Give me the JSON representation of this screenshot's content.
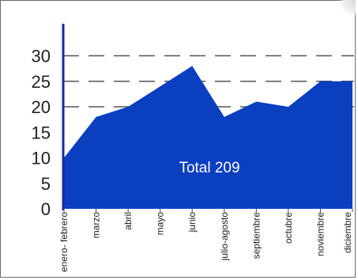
{
  "chart_data": {
    "type": "area",
    "categories": [
      "enero- febrero",
      "marzo",
      "abril",
      "mayo",
      "junio",
      "julio-agosto",
      "septiembre",
      "octubre",
      "noviembre",
      "diciembre"
    ],
    "values": [
      10,
      18,
      20,
      24,
      28,
      18,
      21,
      20,
      25,
      25
    ],
    "ylim": [
      0,
      30
    ],
    "yticks": [
      0,
      5,
      10,
      15,
      20,
      25,
      30
    ],
    "grid": true,
    "grid_lines_at": [
      20,
      25,
      30
    ],
    "annotation": "Total 209",
    "area_color": "#0a3fc0",
    "axis_color": "#1a2a9a",
    "grid_color": "#555555"
  }
}
